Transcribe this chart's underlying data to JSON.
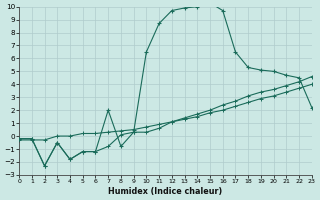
{
  "xlabel": "Humidex (Indice chaleur)",
  "bg_color": "#cce8e4",
  "line_color": "#1a6b5a",
  "grid_color": "#b0cccc",
  "xlim": [
    0,
    23
  ],
  "ylim": [
    -3,
    10
  ],
  "xticks": [
    0,
    1,
    2,
    3,
    4,
    5,
    6,
    7,
    8,
    9,
    10,
    11,
    12,
    13,
    14,
    15,
    16,
    17,
    18,
    19,
    20,
    21,
    22,
    23
  ],
  "yticks": [
    -3,
    -2,
    -1,
    0,
    1,
    2,
    3,
    4,
    5,
    6,
    7,
    8,
    9,
    10
  ],
  "curve_main_x": [
    0,
    1,
    2,
    3,
    4,
    5,
    6,
    7,
    8,
    9,
    10,
    11,
    12,
    13,
    14,
    15,
    16,
    17,
    18,
    19,
    20,
    21,
    22,
    23
  ],
  "curve_main_y": [
    -0.2,
    -0.2,
    -2.3,
    -0.5,
    -1.8,
    -1.2,
    -1.2,
    2.0,
    -0.8,
    0.3,
    6.5,
    8.7,
    9.7,
    9.9,
    10.0,
    10.3,
    9.7,
    6.5,
    5.3,
    5.1,
    5.0,
    4.7,
    4.5,
    2.2
  ],
  "curve_line1_x": [
    0,
    1,
    2,
    3,
    4,
    5,
    6,
    7,
    8,
    9,
    10,
    11,
    12,
    13,
    14,
    15,
    16,
    17,
    18,
    19,
    20,
    21,
    22,
    23
  ],
  "curve_line1_y": [
    -0.2,
    -0.2,
    -2.3,
    -0.5,
    -1.8,
    -1.2,
    -1.2,
    -0.8,
    0.1,
    0.3,
    0.3,
    0.6,
    1.1,
    1.4,
    1.7,
    2.0,
    2.4,
    2.7,
    3.1,
    3.4,
    3.6,
    3.9,
    4.2,
    4.6
  ],
  "curve_line2_x": [
    0,
    1,
    2,
    3,
    4,
    5,
    6,
    7,
    8,
    9,
    10,
    11,
    12,
    13,
    14,
    15,
    16,
    17,
    18,
    19,
    20,
    21,
    22,
    23
  ],
  "curve_line2_y": [
    -0.3,
    -0.3,
    -0.3,
    0.0,
    0.0,
    0.2,
    0.2,
    0.3,
    0.4,
    0.5,
    0.7,
    0.9,
    1.1,
    1.3,
    1.5,
    1.8,
    2.0,
    2.3,
    2.6,
    2.9,
    3.1,
    3.4,
    3.7,
    4.0
  ]
}
